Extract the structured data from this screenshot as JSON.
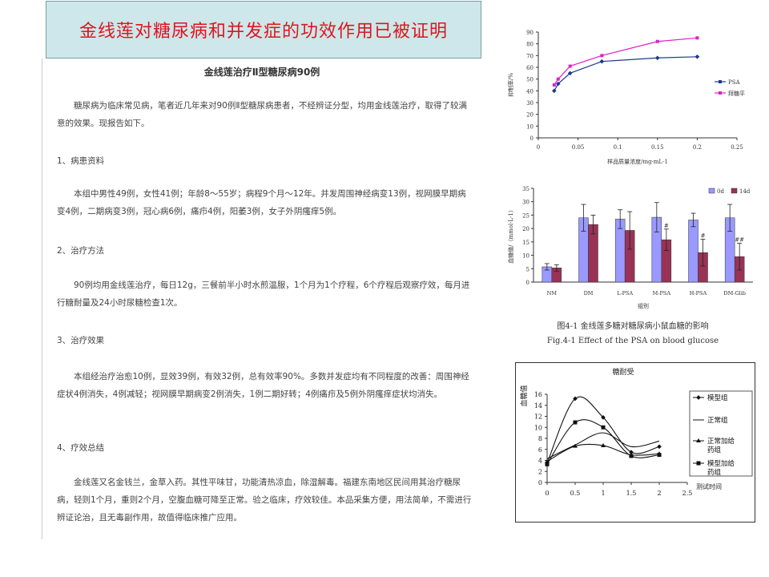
{
  "banner": {
    "title": "金线莲对糖尿病和并发症的功效作用已被证明"
  },
  "document": {
    "title": "金线莲治疗Ⅱ型糖尿病90例",
    "intro": "糖尿病为临床常见病，笔者近几年来对90例Ⅱ型糖尿病患者，不经辨证分型，均用金线莲治疗，取得了较满意的效果。现报告如下。",
    "s1_heading": "1、病患资料",
    "s1_text": "本组中男性49例，女性41例；年龄8～55岁；病程9个月～12年。并发周围神经病变13例，视网膜早期病变4例，二期病变3例，冠心病6例，痛疖4例，阳萎3例，女子外阴瘙痒5例。",
    "s2_heading": "2、治疗方法",
    "s2_text": "90例均用金线莲治疗，每日12g，三餐前半小时水煎温服，1个月为1个疗程，6个疗程后观察疗效，每月进行糖耐量及24小时尿糖检查1次。",
    "s3_heading": "3、治疗效果",
    "s3_text": "本组经治疗治愈10例，显效39例，有效32例，总有效率90%。多数并发症均有不同程度的改善：周围神经症状4例消失，4例减轻；视网膜早期病变2例消失，1例二期好转；4例痛疖及5例外阴瘙痒症状均消失。",
    "s4_heading": "4、疗效总结",
    "s4_text": "金线莲又名金钱兰，金草入药。其性平味甘，功能清热凉血，除湿解毒。福建东南地区民间用其治疗糖尿病，轻则1个月，重则2个月，空腹血糖可降至正常。验之临床，疗效较佳。本品采集方便，用法简单，不需进行辨证论治，且无毒副作用，故值得临床推广应用。"
  },
  "chart_data": [
    {
      "type": "line",
      "xlabel": "样品质量浓度/mg·mL-1",
      "ylabel": "抑制率/%",
      "xlim": [
        0,
        0.25
      ],
      "ylim": [
        0,
        90
      ],
      "xticks": [
        "0",
        "0.05",
        "0.1",
        "0.15",
        "0.2",
        "0.25"
      ],
      "yticks": [
        "0",
        "10",
        "20",
        "30",
        "40",
        "50",
        "60",
        "70",
        "80",
        "90"
      ],
      "series": [
        {
          "name": "PSA",
          "color": "#1f3a8c",
          "x": [
            0.02,
            0.025,
            0.04,
            0.08,
            0.15,
            0.2
          ],
          "y": [
            40,
            46,
            55,
            65,
            68,
            69
          ]
        },
        {
          "name": "拜糖平",
          "color": "#e020c8",
          "x": [
            0.02,
            0.025,
            0.04,
            0.08,
            0.15,
            0.2
          ],
          "y": [
            45,
            50,
            61,
            70,
            82,
            85
          ]
        }
      ],
      "legend": "right"
    },
    {
      "type": "bar",
      "xlabel": "组别",
      "ylabel": "血糖值/（mmol·L-1）",
      "ylim": [
        0,
        35
      ],
      "yticks": [
        "0",
        "5",
        "10",
        "15",
        "20",
        "25",
        "30",
        "35"
      ],
      "categories": [
        "NM",
        "DM",
        "L-PSA",
        "M-PSA",
        "H-PSA",
        "DM-Glib"
      ],
      "series": [
        {
          "name": "0d",
          "color": "#9999ff",
          "values": [
            5.7,
            24,
            23.5,
            24.2,
            23.2,
            24
          ],
          "errors": [
            1.2,
            5,
            3.5,
            5.5,
            2.5,
            5
          ]
        },
        {
          "name": "14d",
          "color": "#993355",
          "values": [
            5.3,
            21.5,
            19.3,
            15.8,
            11,
            9.5
          ],
          "errors": [
            1.2,
            3.5,
            7,
            4,
            5,
            5
          ]
        }
      ],
      "annotations": [
        "#",
        "#",
        "##"
      ],
      "caption_cn": "图4-1  金线莲多糖对糖尿病小鼠血糖的影响",
      "caption_en": "Fig.4-1 Effect of the PSA on blood glucose",
      "legend": "top-right"
    },
    {
      "type": "line",
      "title": "糖耐受",
      "xlabel": "测试时间",
      "ylabel": "血糖值",
      "xlim": [
        0,
        2.5
      ],
      "ylim": [
        0,
        16
      ],
      "xticks": [
        "0",
        "0.5",
        "1",
        "1.5",
        "2",
        "2.5"
      ],
      "yticks": [
        "0",
        "2",
        "4",
        "6",
        "8",
        "10",
        "12",
        "14",
        "16"
      ],
      "series": [
        {
          "name": "模型组",
          "marker": "diamond",
          "x": [
            0,
            0.5,
            1,
            1.5,
            2
          ],
          "y": [
            3.5,
            15.2,
            11.8,
            5.5,
            6.5
          ]
        },
        {
          "name": "正常组",
          "marker": "none",
          "x": [
            0,
            0.5,
            1,
            1.5,
            2
          ],
          "y": [
            4.3,
            6.8,
            9.0,
            6.5,
            7.5
          ]
        },
        {
          "name": "正常加给药组",
          "marker": "triangle",
          "x": [
            0,
            0.5,
            1,
            1.5,
            2
          ],
          "y": [
            3.8,
            6.6,
            6.7,
            5.0,
            5.2
          ]
        },
        {
          "name": "模型加给药组",
          "marker": "square",
          "x": [
            0,
            0.5,
            1,
            1.5,
            2
          ],
          "y": [
            3.3,
            10.9,
            10.0,
            4.8,
            5.0
          ]
        }
      ],
      "legend": "right"
    }
  ]
}
